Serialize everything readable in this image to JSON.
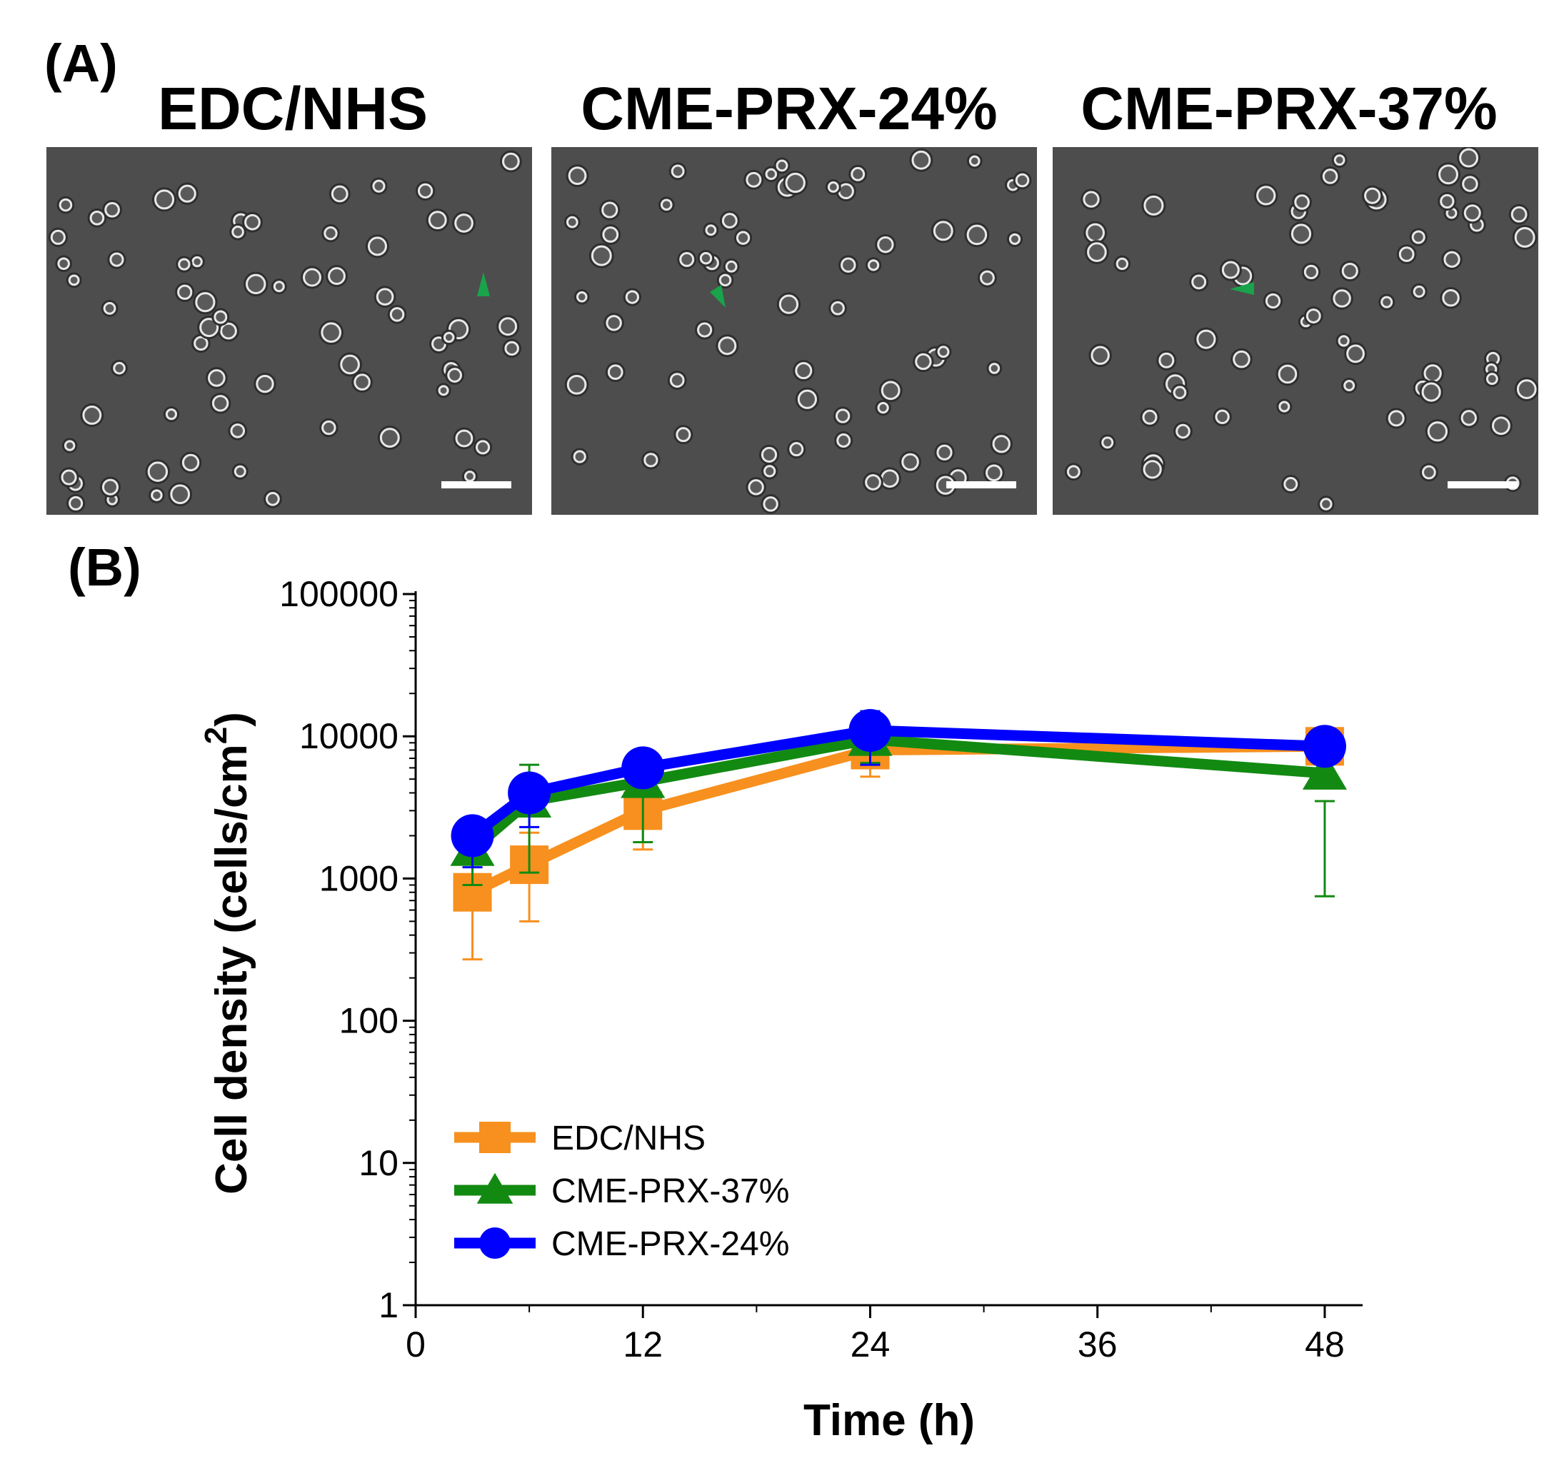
{
  "panel_a": {
    "label": "(A)",
    "images": [
      {
        "title": "EDC/NHS",
        "alt": "phase contrast micrograph, EDC/NHS"
      },
      {
        "title": "CME-PRX-24%",
        "alt": "phase contrast micrograph, CME-PRX-24%"
      },
      {
        "title": "CME-PRX-37%",
        "alt": "phase contrast micrograph, CME-PRX-37%"
      }
    ],
    "arrow_color": "#19a34a",
    "scale_bar_color": "#ffffff"
  },
  "panel_b": {
    "label": "(B)"
  },
  "chart_data": {
    "type": "line",
    "title": "",
    "xlabel": "Time (h)",
    "ylabel_main": "Cell density (cells/cm",
    "ylabel_sup": "2",
    "ylabel_close": ")",
    "y_scale": "log",
    "xlim": [
      0,
      50
    ],
    "ylim": [
      1,
      100000
    ],
    "x_ticks": [
      0,
      12,
      24,
      36,
      48
    ],
    "x_tick_labels": [
      "0",
      "12",
      "24",
      "36",
      "48"
    ],
    "y_ticks": [
      1,
      10,
      100,
      1000,
      10000,
      100000
    ],
    "y_tick_labels": [
      "1",
      "10",
      "100",
      "1000",
      "10000",
      "100000"
    ],
    "legend_position": "bottom-left",
    "series": [
      {
        "name": "EDC/NHS",
        "color": "#f7901e",
        "marker": "square",
        "x": [
          3,
          6,
          12,
          24,
          48
        ],
        "y": [
          800,
          1250,
          3000,
          8000,
          8500
        ],
        "err_low": [
          270,
          500,
          1600,
          5200,
          6500
        ],
        "err_high": [
          1300,
          2100,
          4300,
          11000,
          10500
        ]
      },
      {
        "name": "CME-PRX-37%",
        "color": "#128a12",
        "marker": "triangle",
        "x": [
          3,
          6,
          12,
          24,
          48
        ],
        "y": [
          1600,
          3500,
          4800,
          9500,
          5500
        ],
        "err_low": [
          900,
          1100,
          1800,
          6500,
          750
        ],
        "err_high": [
          2500,
          6300,
          7800,
          15000,
          3500
        ]
      },
      {
        "name": "CME-PRX-24%",
        "color": "#0000ff",
        "marker": "circle",
        "x": [
          3,
          6,
          12,
          24,
          48
        ],
        "y": [
          2000,
          4000,
          6000,
          11000,
          8500
        ],
        "err_low": [
          1200,
          2300,
          5200,
          6300,
          6800
        ],
        "err_high": [
          2600,
          5200,
          7600,
          15000,
          10500
        ]
      }
    ]
  }
}
